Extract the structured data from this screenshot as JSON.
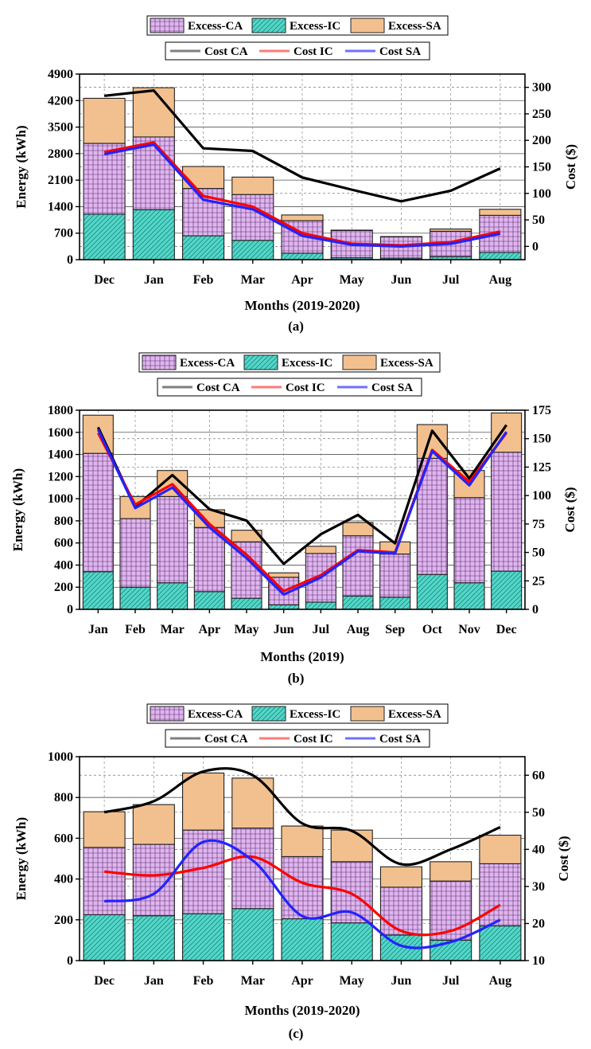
{
  "colors": {
    "excess_ca": "#dfb6ee",
    "excess_ic": "#52d6c8",
    "excess_sa": "#f2c08e",
    "cost_ca": "#000000",
    "cost_ic": "#ff0000",
    "cost_sa": "#2323ff",
    "legend_ca": "#7f7f7f",
    "legend_ic": "#ff7a7a",
    "legend_sa": "#7070ff"
  },
  "legend": {
    "bars": [
      "Excess-CA",
      "Excess-IC",
      "Excess-SA"
    ],
    "lines": [
      "Cost CA",
      "Cost IC",
      "Cost SA"
    ]
  },
  "chart_data": [
    {
      "type": "bar",
      "panel": "(a)",
      "caption": "(a)",
      "xlabel": "Months (2019-2020)",
      "ylabel": "Energy (kWh)",
      "y2label": "Cost ($)",
      "ylim": [
        0,
        4900
      ],
      "yticks": [
        0,
        700,
        1400,
        2100,
        2800,
        3500,
        4200,
        4900
      ],
      "y2lim": [
        -25,
        325
      ],
      "y2ticks": [
        0,
        50,
        100,
        150,
        200,
        250,
        300
      ],
      "categories": [
        "Dec",
        "Jan",
        "Feb",
        "Mar",
        "Apr",
        "May",
        "Jun",
        "Jul",
        "Aug"
      ],
      "stacked": true,
      "series": [
        {
          "name": "Excess-IC",
          "values": [
            1200,
            1320,
            630,
            510,
            170,
            50,
            40,
            80,
            190
          ]
        },
        {
          "name": "Excess-CA",
          "values": [
            1870,
            1920,
            1250,
            1210,
            860,
            720,
            560,
            670,
            980
          ]
        },
        {
          "name": "Excess-SA",
          "values": [
            1190,
            1300,
            580,
            460,
            150,
            10,
            10,
            60,
            160
          ]
        }
      ],
      "lines": [
        {
          "name": "Cost CA",
          "values": [
            284,
            294,
            185,
            180,
            130,
            107,
            85,
            105,
            147
          ]
        },
        {
          "name": "Cost IC",
          "values": [
            178,
            196,
            95,
            75,
            25,
            5,
            2,
            8,
            28
          ]
        },
        {
          "name": "Cost SA",
          "values": [
            174,
            192,
            88,
            70,
            20,
            3,
            0,
            5,
            24
          ]
        }
      ],
      "smooth": false
    },
    {
      "type": "bar",
      "panel": "(b)",
      "caption": "(b)",
      "xlabel": "Months (2019)",
      "ylabel": "Energy (kWh)",
      "y2label": "Cost ($)",
      "ylim": [
        0,
        1800
      ],
      "yticks": [
        0,
        200,
        400,
        600,
        800,
        1000,
        1200,
        1400,
        1600,
        1800
      ],
      "y2lim": [
        0,
        175
      ],
      "y2ticks": [
        0,
        25,
        50,
        75,
        100,
        125,
        150,
        175
      ],
      "categories": [
        "Jan",
        "Feb",
        "Mar",
        "Apr",
        "May",
        "Jun",
        "Jul",
        "Aug",
        "Sep",
        "Oct",
        "Nov",
        "Dec"
      ],
      "stacked": true,
      "series": [
        {
          "name": "Excess-IC",
          "values": [
            340,
            200,
            240,
            160,
            100,
            40,
            65,
            120,
            110,
            315,
            240,
            345
          ]
        },
        {
          "name": "Excess-CA",
          "values": [
            1070,
            620,
            780,
            580,
            510,
            250,
            440,
            545,
            390,
            1050,
            770,
            1075
          ]
        },
        {
          "name": "Excess-SA",
          "values": [
            345,
            200,
            235,
            160,
            105,
            40,
            65,
            120,
            110,
            305,
            245,
            355
          ]
        }
      ],
      "lines": [
        {
          "name": "Cost CA",
          "values": [
            160,
            90,
            118,
            88,
            78,
            40,
            66,
            83,
            58,
            157,
            115,
            162
          ]
        },
        {
          "name": "Cost IC",
          "values": [
            155,
            92,
            110,
            75,
            48,
            16,
            30,
            52,
            50,
            140,
            112,
            155
          ]
        },
        {
          "name": "Cost SA",
          "values": [
            158,
            89,
            107,
            72,
            45,
            13,
            28,
            51,
            49,
            139,
            109,
            156
          ]
        }
      ],
      "smooth": false
    },
    {
      "type": "bar",
      "panel": "(c)",
      "caption": "(c)",
      "xlabel": "Months (2019-2020)",
      "ylabel": "Energy (kWh)",
      "y2label": "Cost ($)",
      "ylim": [
        0,
        1000
      ],
      "yticks": [
        0,
        200,
        400,
        600,
        800,
        1000
      ],
      "y2lim": [
        10,
        65
      ],
      "y2ticks": [
        10,
        20,
        30,
        40,
        50,
        60
      ],
      "categories": [
        "Dec",
        "Jan",
        "Feb",
        "Mar",
        "Apr",
        "May",
        "Jun",
        "Jul",
        "Aug"
      ],
      "stacked": true,
      "series": [
        {
          "name": "Excess-IC",
          "values": [
            225,
            220,
            230,
            255,
            205,
            185,
            125,
            100,
            170
          ]
        },
        {
          "name": "Excess-CA",
          "values": [
            330,
            350,
            410,
            395,
            305,
            300,
            235,
            290,
            305
          ]
        },
        {
          "name": "Excess-SA",
          "values": [
            175,
            195,
            280,
            245,
            150,
            155,
            100,
            95,
            140
          ]
        }
      ],
      "lines": [
        {
          "name": "Cost CA",
          "values": [
            50,
            53,
            61,
            60,
            47,
            45,
            36,
            40,
            46
          ]
        },
        {
          "name": "Cost IC",
          "values": [
            34,
            33,
            35,
            38,
            31,
            28,
            18,
            18,
            25
          ]
        },
        {
          "name": "Cost SA",
          "values": [
            26,
            28,
            42,
            37,
            22,
            23,
            14,
            15,
            21
          ]
        }
      ],
      "smooth": true
    }
  ]
}
